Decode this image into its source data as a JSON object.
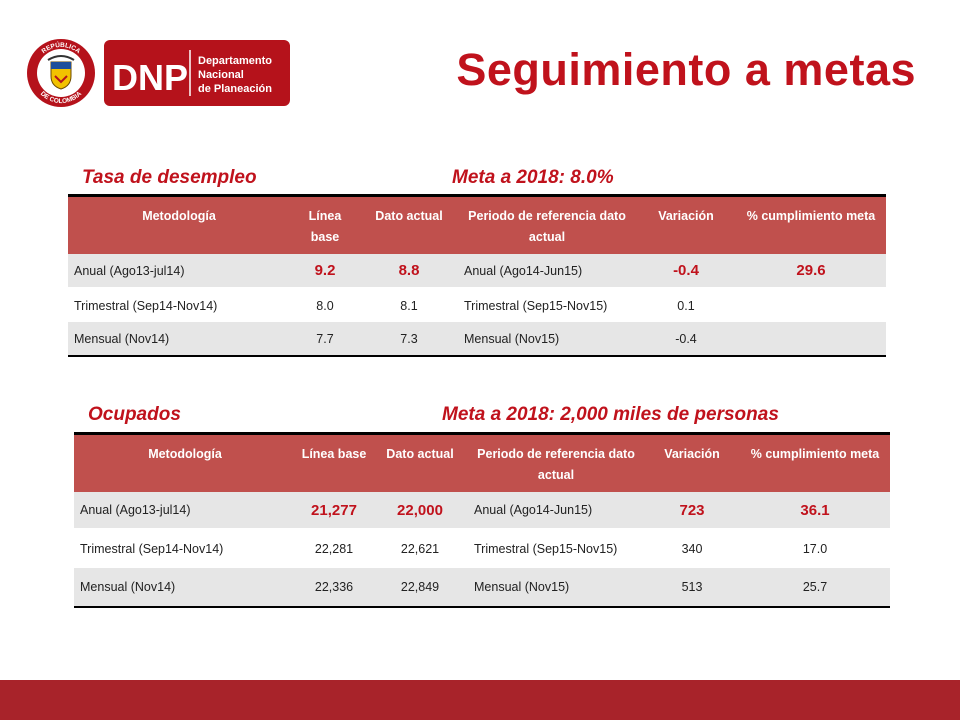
{
  "logo": {
    "seal_text": "REPÚBLICA DE COLOMBIA",
    "abbr": "DNP",
    "line1": "Departamento",
    "line2": "Nacional",
    "line3": "de Planeación"
  },
  "title": "Seguimiento a metas",
  "colors": {
    "accent": "#c0121c",
    "header_fill": "#c0504d",
    "footer": "#a8232a",
    "row_gray": "#e6e6e6"
  },
  "headers": [
    "Metodología",
    "Línea base",
    "Dato actual",
    "Periodo de referencia dato actual",
    "Variación",
    "% cumplimiento meta"
  ],
  "table1": {
    "label": "Tasa de desempleo",
    "meta": "Meta a 2018: 8.0%",
    "rows": [
      [
        "Anual (Ago13-jul14)",
        "9.2",
        "8.8",
        "Anual (Ago14-Jun15)",
        "-0.4",
        "29.6"
      ],
      [
        "Trimestral (Sep14-Nov14)",
        "8.0",
        "8.1",
        "Trimestral (Sep15-Nov15)",
        "0.1",
        ""
      ],
      [
        "Mensual (Nov14)",
        "7.7",
        "7.3",
        "Mensual (Nov15)",
        "-0.4",
        ""
      ]
    ]
  },
  "table2": {
    "label": "Ocupados",
    "meta": "Meta a 2018: 2,000 miles de personas",
    "rows": [
      [
        "Anual (Ago13-jul14)",
        "21,277",
        "22,000",
        "Anual (Ago14-Jun15)",
        "723",
        "36.1"
      ],
      [
        "Trimestral (Sep14-Nov14)",
        "22,281",
        "22,621",
        "Trimestral (Sep15-Nov15)",
        "340",
        "17.0"
      ],
      [
        "Mensual (Nov14)",
        "22,336",
        "22,849",
        "Mensual (Nov15)",
        "513",
        "25.7"
      ]
    ]
  }
}
